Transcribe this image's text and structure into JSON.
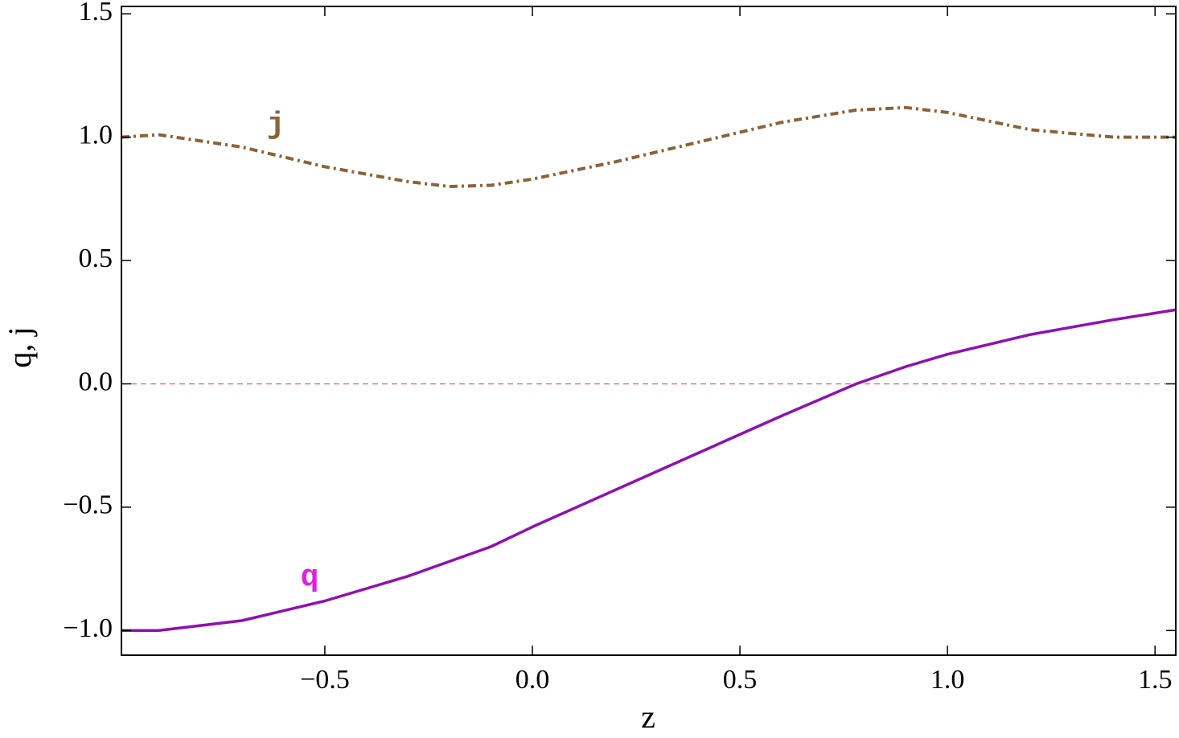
{
  "chart_data": {
    "type": "line",
    "xlabel": "z",
    "ylabel": "q, j",
    "xlim": [
      -0.99,
      1.55
    ],
    "ylim": [
      -1.1,
      1.53
    ],
    "xticks": [
      {
        "value": -0.5,
        "label": "−0.5"
      },
      {
        "value": 0,
        "label": "0.0"
      },
      0.5,
      {
        "value": 1,
        "label": "1.0"
      },
      1.5
    ],
    "yticks": [
      {
        "value": -1,
        "label": "−1.0"
      },
      {
        "value": -0.5,
        "label": "−0.5"
      },
      {
        "value": 0,
        "label": "0.0"
      },
      0.5,
      {
        "value": 1,
        "label": "1.0"
      },
      1.5
    ],
    "hline": {
      "value": 0,
      "color": "#e06060"
    },
    "x": [
      -0.99,
      -0.9,
      -0.7,
      -0.5,
      -0.3,
      -0.2,
      -0.1,
      0.0,
      0.2,
      0.4,
      0.6,
      0.78,
      0.9,
      1.0,
      1.2,
      1.4,
      1.55
    ],
    "series": [
      {
        "name": "q",
        "color": "#9010b0",
        "label_color": "#e020e0",
        "dash": "solid",
        "values": [
          -1.0,
          -1.0,
          -0.96,
          -0.88,
          -0.78,
          -0.72,
          -0.66,
          -0.58,
          -0.43,
          -0.28,
          -0.13,
          0.0,
          0.07,
          0.12,
          0.2,
          0.26,
          0.3
        ]
      },
      {
        "name": "j",
        "color": "#8c6239",
        "label_color": "#8c6239",
        "dash": "dashdot",
        "values": [
          1.0,
          1.01,
          0.96,
          0.88,
          0.82,
          0.8,
          0.805,
          0.83,
          0.9,
          0.98,
          1.06,
          1.11,
          1.12,
          1.1,
          1.03,
          1.0,
          1.0
        ]
      }
    ]
  }
}
